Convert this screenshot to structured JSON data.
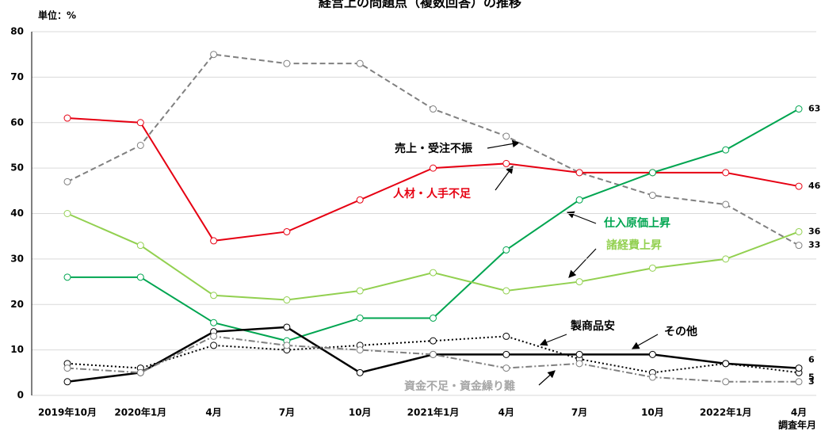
{
  "chart_data": {
    "type": "line",
    "title": "経営上の問題点（複数回答）の推移",
    "y_unit": "単位：%",
    "x_label": "調査年月",
    "categories": [
      "2019年10月",
      "2020年1月",
      "4月",
      "7月",
      "10月",
      "2021年1月",
      "4月",
      "7月",
      "10月",
      "2022年1月",
      "4月"
    ],
    "ylim": [
      0,
      80
    ],
    "yticks": [
      0,
      10,
      20,
      30,
      40,
      50,
      60,
      70,
      80
    ],
    "grid": true,
    "series": [
      {
        "name": "売上・受注不振",
        "color": "#808080",
        "style": "dashed",
        "values": [
          47,
          55,
          75,
          73,
          73,
          63,
          57,
          49,
          44,
          42,
          33
        ]
      },
      {
        "name": "人材・人手不足",
        "color": "#e60012",
        "style": "solid",
        "values": [
          61,
          60,
          34,
          36,
          43,
          50,
          51,
          49,
          49,
          49,
          46
        ]
      },
      {
        "name": "仕入原価上昇",
        "color": "#00a550",
        "style": "solid",
        "values": [
          26,
          26,
          16,
          12,
          17,
          17,
          32,
          43,
          49,
          54,
          63
        ]
      },
      {
        "name": "諸経費上昇",
        "color": "#92d050",
        "style": "solid",
        "values": [
          40,
          33,
          22,
          21,
          23,
          27,
          23,
          25,
          28,
          30,
          36
        ]
      },
      {
        "name": "製商品安",
        "color": "#000000",
        "style": "dotted",
        "values": [
          7,
          6,
          11,
          10,
          11,
          12,
          13,
          8,
          5,
          7,
          5
        ]
      },
      {
        "name": "その他",
        "color": "#000000",
        "style": "solid-thick",
        "values": [
          3,
          5,
          14,
          15,
          5,
          9,
          9,
          9,
          9,
          7,
          6
        ]
      },
      {
        "name": "資金不足・資金繰り難",
        "color": "#808080",
        "style": "dashdot",
        "values": [
          6,
          5,
          13,
          11,
          10,
          9,
          6,
          7,
          4,
          3,
          3
        ]
      }
    ]
  }
}
